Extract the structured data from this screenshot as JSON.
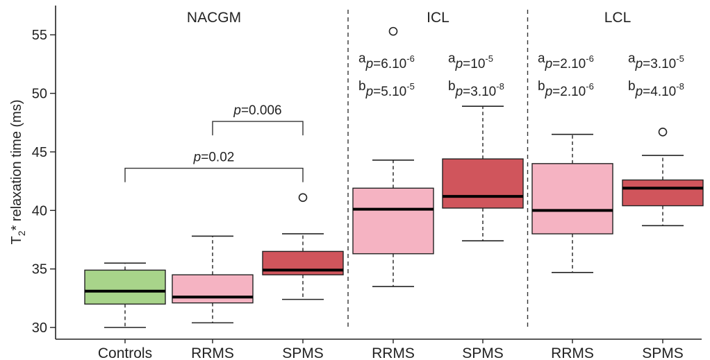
{
  "chart_data": {
    "type": "box",
    "ylabel_main": "T",
    "ylabel_sub": "2",
    "ylabel_rest": "* relaxation time (ms)",
    "ylim": [
      29.0,
      57.5
    ],
    "yticks": [
      30,
      35,
      40,
      45,
      50,
      55
    ],
    "groups": [
      {
        "label": "NACGM",
        "start": 0,
        "end": 2
      },
      {
        "label": "ICL",
        "start": 3,
        "end": 4
      },
      {
        "label": "LCL",
        "start": 5,
        "end": 6
      }
    ],
    "colors": {
      "Controls": "#a8d48a",
      "RRMS": "#f5b3c2",
      "SPMS": "#d0555c"
    },
    "boxes": [
      {
        "category": "Controls",
        "group": "NACGM",
        "whisker_low": 30.0,
        "q1": 32.0,
        "median": 33.1,
        "q3": 34.9,
        "whisker_high": 35.5,
        "outliers": []
      },
      {
        "category": "RRMS",
        "group": "NACGM",
        "whisker_low": 30.4,
        "q1": 32.1,
        "median": 32.6,
        "q3": 34.5,
        "whisker_high": 37.8,
        "outliers": []
      },
      {
        "category": "SPMS",
        "group": "NACGM",
        "whisker_low": 32.4,
        "q1": 34.5,
        "median": 34.9,
        "q3": 36.5,
        "whisker_high": 38.0,
        "outliers": [
          41.1
        ]
      },
      {
        "category": "RRMS",
        "group": "ICL",
        "whisker_low": 33.5,
        "q1": 36.3,
        "median": 40.1,
        "q3": 41.9,
        "whisker_high": 44.3,
        "outliers": [
          55.3
        ]
      },
      {
        "category": "SPMS",
        "group": "ICL",
        "whisker_low": 37.4,
        "q1": 40.2,
        "median": 41.2,
        "q3": 44.4,
        "whisker_high": 48.9,
        "outliers": []
      },
      {
        "category": "RRMS",
        "group": "LCL",
        "whisker_low": 34.7,
        "q1": 38.0,
        "median": 40.0,
        "q3": 44.0,
        "whisker_high": 46.5,
        "outliers": []
      },
      {
        "category": "SPMS",
        "group": "LCL",
        "whisker_low": 38.7,
        "q1": 40.4,
        "median": 41.9,
        "q3": 42.6,
        "whisker_high": 44.7,
        "outliers": [
          46.7
        ]
      }
    ],
    "brackets": [
      {
        "from": 1,
        "to": 2,
        "y": 47.6,
        "p_italic": "p",
        "p_value": "=0.006"
      },
      {
        "from": 0,
        "to": 2,
        "y": 43.6,
        "p_italic": "p",
        "p_value": "=0.02"
      }
    ],
    "annotations": [
      {
        "box": 3,
        "lines": [
          {
            "sup_letter": "a",
            "p": "p",
            "text": "=6.10",
            "exp": "-6"
          },
          {
            "sup_letter": "b",
            "p": "p",
            "text": "=5.10",
            "exp": "-5"
          }
        ]
      },
      {
        "box": 4,
        "lines": [
          {
            "sup_letter": "a",
            "p": "p",
            "text": "=10",
            "exp": "-5"
          },
          {
            "sup_letter": "b",
            "p": "p",
            "text": "=3.10",
            "exp": "-8"
          }
        ]
      },
      {
        "box": 5,
        "lines": [
          {
            "sup_letter": "a",
            "p": "p",
            "text": "=2.10",
            "exp": "-6"
          },
          {
            "sup_letter": "b",
            "p": "p",
            "text": "=2.10",
            "exp": "-6"
          }
        ]
      },
      {
        "box": 6,
        "lines": [
          {
            "sup_letter": "a",
            "p": "p",
            "text": "=3.10",
            "exp": "-5"
          },
          {
            "sup_letter": "b",
            "p": "p",
            "text": "=4.10",
            "exp": "-8"
          }
        ]
      }
    ]
  }
}
